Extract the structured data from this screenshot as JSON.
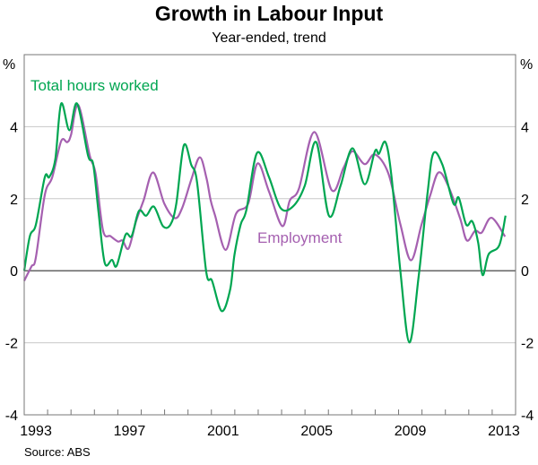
{
  "chart_data": {
    "type": "line",
    "title": "Growth in Labour Input",
    "subtitle": "Year-ended, trend",
    "ylabel_left": "%",
    "ylabel_right": "%",
    "ylim": [
      -4,
      6
    ],
    "yticks": [
      -4,
      -2,
      0,
      2,
      4
    ],
    "xlim": [
      1993,
      2014
    ],
    "xtick_labels": [
      "1993",
      "1997",
      "2001",
      "2005",
      "2009",
      "2013"
    ],
    "grid": true,
    "source": "Source: ABS",
    "series": [
      {
        "name": "Total hours worked",
        "color": "#00A651",
        "points": [
          [
            1993.0,
            0.0
          ],
          [
            1993.24,
            0.96
          ],
          [
            1993.5,
            1.28
          ],
          [
            1993.88,
            2.6
          ],
          [
            1994.07,
            2.6
          ],
          [
            1994.33,
            3.1
          ],
          [
            1994.58,
            4.64
          ],
          [
            1994.93,
            3.9
          ],
          [
            1995.26,
            4.64
          ],
          [
            1995.73,
            3.2
          ],
          [
            1995.95,
            2.95
          ],
          [
            1996.18,
            1.6
          ],
          [
            1996.44,
            0.22
          ],
          [
            1996.75,
            0.3
          ],
          [
            1996.95,
            0.14
          ],
          [
            1997.33,
            1.0
          ],
          [
            1997.59,
            0.96
          ],
          [
            1997.9,
            1.66
          ],
          [
            1998.21,
            1.53
          ],
          [
            1998.54,
            1.78
          ],
          [
            1998.93,
            1.24
          ],
          [
            1999.25,
            1.28
          ],
          [
            1999.5,
            1.86
          ],
          [
            1999.82,
            3.48
          ],
          [
            2000.14,
            2.94
          ],
          [
            2000.39,
            2.45
          ],
          [
            2000.78,
            -0.03
          ],
          [
            2001.03,
            -0.28
          ],
          [
            2001.44,
            -1.12
          ],
          [
            2001.8,
            -0.53
          ],
          [
            2001.99,
            0.46
          ],
          [
            2002.25,
            1.28
          ],
          [
            2002.5,
            1.7
          ],
          [
            2002.95,
            3.27
          ],
          [
            2003.46,
            2.6
          ],
          [
            2003.96,
            1.74
          ],
          [
            2004.48,
            1.78
          ],
          [
            2004.99,
            2.36
          ],
          [
            2005.48,
            3.57
          ],
          [
            2006.02,
            1.53
          ],
          [
            2006.52,
            2.36
          ],
          [
            2007.03,
            3.4
          ],
          [
            2007.55,
            2.4
          ],
          [
            2007.99,
            3.32
          ],
          [
            2008.16,
            3.25
          ],
          [
            2008.44,
            3.57
          ],
          [
            2008.7,
            2.6
          ],
          [
            2009.08,
            -0.03
          ],
          [
            2009.46,
            -1.99
          ],
          [
            2009.85,
            -0.2
          ],
          [
            2010.23,
            2.11
          ],
          [
            2010.48,
            3.25
          ],
          [
            2010.87,
            2.95
          ],
          [
            2011.35,
            1.86
          ],
          [
            2011.57,
            2.03
          ],
          [
            2011.89,
            1.28
          ],
          [
            2012.15,
            1.37
          ],
          [
            2012.4,
            0.79
          ],
          [
            2012.59,
            -0.12
          ],
          [
            2012.85,
            0.46
          ],
          [
            2013.3,
            0.7
          ],
          [
            2013.57,
            1.53
          ]
        ]
      },
      {
        "name": "Employment",
        "color": "#A560B0",
        "points": [
          [
            1993.0,
            -0.28
          ],
          [
            1993.31,
            0.12
          ],
          [
            1993.5,
            0.37
          ],
          [
            1993.88,
            2.11
          ],
          [
            1994.2,
            2.6
          ],
          [
            1994.58,
            3.6
          ],
          [
            1994.84,
            3.57
          ],
          [
            1995.0,
            3.77
          ],
          [
            1995.31,
            4.6
          ],
          [
            1995.8,
            3.2
          ],
          [
            1996.05,
            2.7
          ],
          [
            1996.37,
            1.12
          ],
          [
            1996.69,
            0.96
          ],
          [
            1997.01,
            0.81
          ],
          [
            1997.2,
            0.84
          ],
          [
            1997.46,
            0.62
          ],
          [
            1997.78,
            1.37
          ],
          [
            1998.1,
            1.95
          ],
          [
            1998.51,
            2.73
          ],
          [
            1998.99,
            1.86
          ],
          [
            1999.44,
            1.46
          ],
          [
            1999.75,
            1.74
          ],
          [
            2000.14,
            2.53
          ],
          [
            2000.5,
            3.15
          ],
          [
            2000.78,
            2.6
          ],
          [
            2000.97,
            1.95
          ],
          [
            2001.16,
            1.53
          ],
          [
            2001.61,
            0.58
          ],
          [
            2002.05,
            1.58
          ],
          [
            2002.57,
            1.86
          ],
          [
            2002.97,
            2.98
          ],
          [
            2003.46,
            2.2
          ],
          [
            2004.03,
            1.24
          ],
          [
            2004.35,
            1.95
          ],
          [
            2004.74,
            2.28
          ],
          [
            2005.4,
            3.85
          ],
          [
            2006.14,
            2.24
          ],
          [
            2006.65,
            2.86
          ],
          [
            2007.03,
            3.32
          ],
          [
            2007.55,
            2.96
          ],
          [
            2007.99,
            3.23
          ],
          [
            2008.57,
            2.69
          ],
          [
            2009.08,
            1.28
          ],
          [
            2009.53,
            0.29
          ],
          [
            2009.98,
            1.28
          ],
          [
            2010.36,
            2.11
          ],
          [
            2010.71,
            2.73
          ],
          [
            2011.12,
            2.36
          ],
          [
            2011.63,
            1.45
          ],
          [
            2011.92,
            0.84
          ],
          [
            2012.27,
            1.11
          ],
          [
            2012.55,
            1.06
          ],
          [
            2012.97,
            1.47
          ],
          [
            2013.55,
            0.95
          ]
        ]
      }
    ]
  }
}
